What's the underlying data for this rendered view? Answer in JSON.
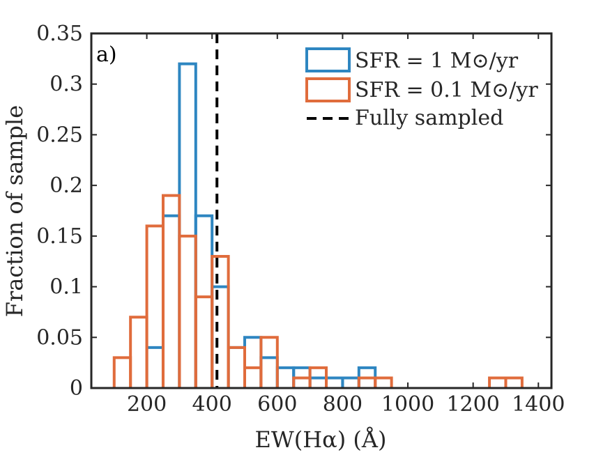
{
  "chart_data": {
    "type": "histogram",
    "panel_label": "a)",
    "xlabel": "EW(Hα) (Å)",
    "ylabel": "Fraction of sample",
    "xlim": [
      30,
      1440
    ],
    "ylim": [
      0,
      0.35
    ],
    "xticks": [
      200,
      400,
      600,
      800,
      1000,
      1200,
      1400
    ],
    "xtick_labels": [
      "200",
      "400",
      "600",
      "800",
      "1000",
      "1200",
      "1400"
    ],
    "yticks": [
      0,
      0.05,
      0.1,
      0.15,
      0.2,
      0.25,
      0.3,
      0.35
    ],
    "ytick_labels": [
      "0",
      "0.05",
      "0.1",
      "0.15",
      "0.2",
      "0.25",
      "0.3",
      "0.35"
    ],
    "bin_width": 50,
    "series": [
      {
        "name": "SFR = 1 M⊙/yr",
        "legend_label": "SFR = 1 M⊙/yr",
        "color": "#2e86c1",
        "bin_edges": [
          200,
          250,
          300,
          350,
          400,
          450,
          500,
          550,
          600,
          650,
          700,
          750,
          800,
          850,
          900,
          950
        ],
        "values": [
          0.04,
          0.17,
          0.32,
          0.17,
          0.1,
          0.04,
          0.05,
          0.03,
          0.02,
          0.02,
          0.01,
          0.01,
          0.01,
          0.02,
          0.0
        ]
      },
      {
        "name": "SFR = 0.1 M⊙/yr",
        "legend_label": "SFR = 0.1 M⊙/yr",
        "color": "#e06c3c",
        "bin_edges": [
          100,
          150,
          200,
          250,
          300,
          350,
          400,
          450,
          500,
          550,
          600,
          650,
          700,
          750,
          800,
          850,
          900,
          950,
          1000,
          1050,
          1100,
          1150,
          1200,
          1250,
          1300,
          1350
        ],
        "values": [
          0.03,
          0.07,
          0.16,
          0.19,
          0.15,
          0.09,
          0.13,
          0.04,
          0.02,
          0.05,
          0.0,
          0.01,
          0.02,
          0.0,
          0.0,
          0.01,
          0.01,
          0.0,
          0.0,
          0.0,
          0.0,
          0.0,
          0.0,
          0.01,
          0.01
        ]
      }
    ],
    "reference_line": {
      "name": "Fully sampled",
      "legend_label": "Fully sampled",
      "x": 415,
      "color": "#000000"
    },
    "legend_position": "top-right",
    "grid": false
  }
}
